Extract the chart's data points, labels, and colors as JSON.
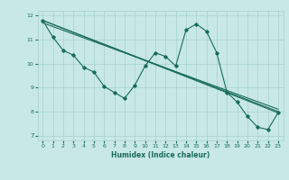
{
  "xlabel": "Humidex (Indice chaleur)",
  "bg_color": "#c8e8e8",
  "line_color": "#1a6b5a",
  "grid_color": "#a8d0d0",
  "xlim": [
    -0.5,
    23.5
  ],
  "ylim": [
    6.8,
    12.2
  ],
  "xticks": [
    0,
    1,
    2,
    3,
    4,
    5,
    6,
    7,
    8,
    9,
    10,
    11,
    12,
    13,
    14,
    15,
    16,
    17,
    18,
    19,
    20,
    21,
    22,
    23
  ],
  "yticks": [
    7,
    8,
    9,
    10,
    11,
    12
  ],
  "series": [
    {
      "x": [
        0,
        1,
        2,
        3,
        4,
        5,
        6,
        7,
        8,
        9,
        10,
        11,
        12,
        13,
        14,
        15,
        16,
        17,
        18,
        19,
        20,
        21,
        22,
        23
      ],
      "y": [
        11.8,
        11.1,
        10.55,
        10.35,
        9.85,
        9.65,
        9.05,
        8.8,
        8.55,
        9.1,
        9.9,
        10.45,
        10.3,
        9.9,
        11.4,
        11.65,
        11.35,
        10.45,
        8.8,
        8.4,
        7.8,
        7.35,
        7.25,
        7.95
      ],
      "has_markers": true
    },
    {
      "x": [
        0,
        23
      ],
      "y": [
        11.8,
        8.0
      ],
      "has_markers": false
    },
    {
      "x": [
        0,
        23
      ],
      "y": [
        11.8,
        7.95
      ],
      "has_markers": false
    },
    {
      "x": [
        0,
        23
      ],
      "y": [
        11.7,
        8.1
      ],
      "has_markers": false
    }
  ]
}
